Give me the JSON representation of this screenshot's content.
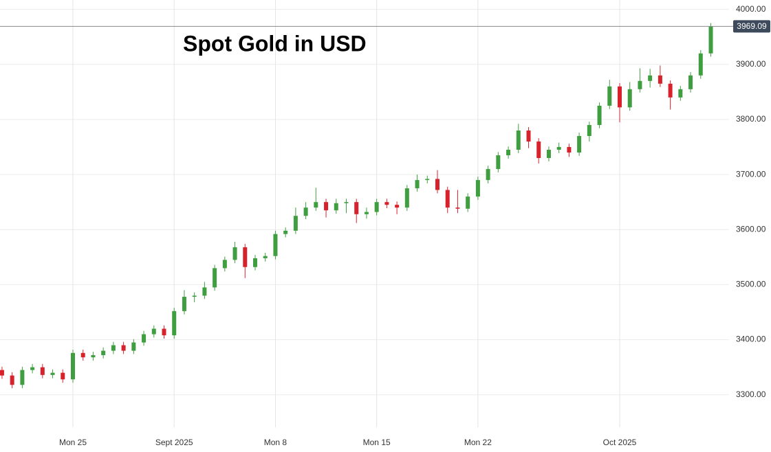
{
  "chart_data": {
    "type": "candlestick",
    "title": "Spot Gold in USD",
    "xlim": [
      -0.2,
      71.8
    ],
    "xticks": [
      {
        "value": 7,
        "label": "Mon 25"
      },
      {
        "value": 17,
        "label": "Sept 2025"
      },
      {
        "value": 27,
        "label": "Mon 8"
      },
      {
        "value": 37,
        "label": "Mon 15"
      },
      {
        "value": 47,
        "label": "Mon 22"
      },
      {
        "value": 61,
        "label": "Oct 2025"
      }
    ],
    "ylim": [
      3241,
      4017
    ],
    "yticks": [
      {
        "value": 3300,
        "label": "3300.00"
      },
      {
        "value": 3400,
        "label": "3400.00"
      },
      {
        "value": 3500,
        "label": "3500.00"
      },
      {
        "value": 3600,
        "label": "3600.00"
      },
      {
        "value": 3700,
        "label": "3700.00"
      },
      {
        "value": 3800,
        "label": "3800.00"
      },
      {
        "value": 3900,
        "label": "3900.00"
      },
      {
        "value": 4000,
        "label": "4000.00"
      }
    ],
    "grid": true,
    "up_color": "#3f9e3f",
    "down_color": "#d8222b",
    "last_price": 3969.09,
    "open": [
      3345,
      3335,
      3318,
      3345,
      3350,
      3336,
      3340,
      3328,
      3376,
      3368,
      3372,
      3380,
      3390,
      3380,
      3395,
      3410,
      3420,
      3408,
      3452,
      3478,
      3480,
      3495,
      3530,
      3545,
      3568,
      3532,
      3548,
      3552,
      3592,
      3598,
      3625,
      3640,
      3650,
      3635,
      3648,
      3650,
      3628,
      3632,
      3650,
      3645,
      3640,
      3675,
      3690,
      3692,
      3672,
      3640,
      3638,
      3660,
      3690,
      3710,
      3735,
      3745,
      3780,
      3760,
      3730,
      3745,
      3750,
      3740,
      3770,
      3790,
      3825,
      3860,
      3822,
      3855,
      3870,
      3880,
      3865,
      3840,
      3855,
      3880,
      3920
    ],
    "high": [
      3351,
      3341,
      3351,
      3356,
      3356,
      3346,
      3346,
      3382,
      3382,
      3378,
      3386,
      3396,
      3396,
      3401,
      3416,
      3426,
      3426,
      3458,
      3490,
      3486,
      3505,
      3536,
      3551,
      3578,
      3574,
      3554,
      3558,
      3598,
      3604,
      3640,
      3650,
      3676,
      3656,
      3656,
      3656,
      3656,
      3640,
      3656,
      3656,
      3651,
      3681,
      3700,
      3698,
      3708,
      3678,
      3672,
      3666,
      3696,
      3716,
      3741,
      3751,
      3792,
      3786,
      3766,
      3751,
      3758,
      3756,
      3776,
      3796,
      3831,
      3872,
      3866,
      3868,
      3893,
      3892,
      3898,
      3871,
      3861,
      3886,
      3926,
      3975
    ],
    "low": [
      3329,
      3312,
      3312,
      3339,
      3330,
      3330,
      3322,
      3322,
      3362,
      3362,
      3366,
      3374,
      3374,
      3374,
      3389,
      3404,
      3402,
      3402,
      3446,
      3468,
      3474,
      3489,
      3524,
      3539,
      3512,
      3526,
      3542,
      3546,
      3586,
      3592,
      3619,
      3634,
      3622,
      3629,
      3630,
      3612,
      3620,
      3626,
      3639,
      3628,
      3634,
      3669,
      3684,
      3666,
      3630,
      3630,
      3632,
      3654,
      3684,
      3704,
      3729,
      3739,
      3748,
      3720,
      3724,
      3739,
      3732,
      3734,
      3760,
      3784,
      3819,
      3795,
      3816,
      3849,
      3858,
      3859,
      3818,
      3834,
      3849,
      3874,
      3914
    ],
    "close": [
      3335,
      3318,
      3345,
      3350,
      3336,
      3340,
      3328,
      3376,
      3368,
      3372,
      3380,
      3390,
      3380,
      3395,
      3410,
      3420,
      3408,
      3452,
      3478,
      3480,
      3495,
      3530,
      3545,
      3568,
      3532,
      3548,
      3552,
      3592,
      3598,
      3625,
      3640,
      3650,
      3635,
      3648,
      3650,
      3628,
      3632,
      3650,
      3645,
      3640,
      3675,
      3690,
      3692,
      3672,
      3640,
      3638,
      3660,
      3690,
      3710,
      3735,
      3745,
      3780,
      3760,
      3730,
      3745,
      3750,
      3740,
      3770,
      3790,
      3825,
      3860,
      3822,
      3855,
      3870,
      3880,
      3865,
      3840,
      3855,
      3880,
      3920,
      3969.09
    ]
  }
}
